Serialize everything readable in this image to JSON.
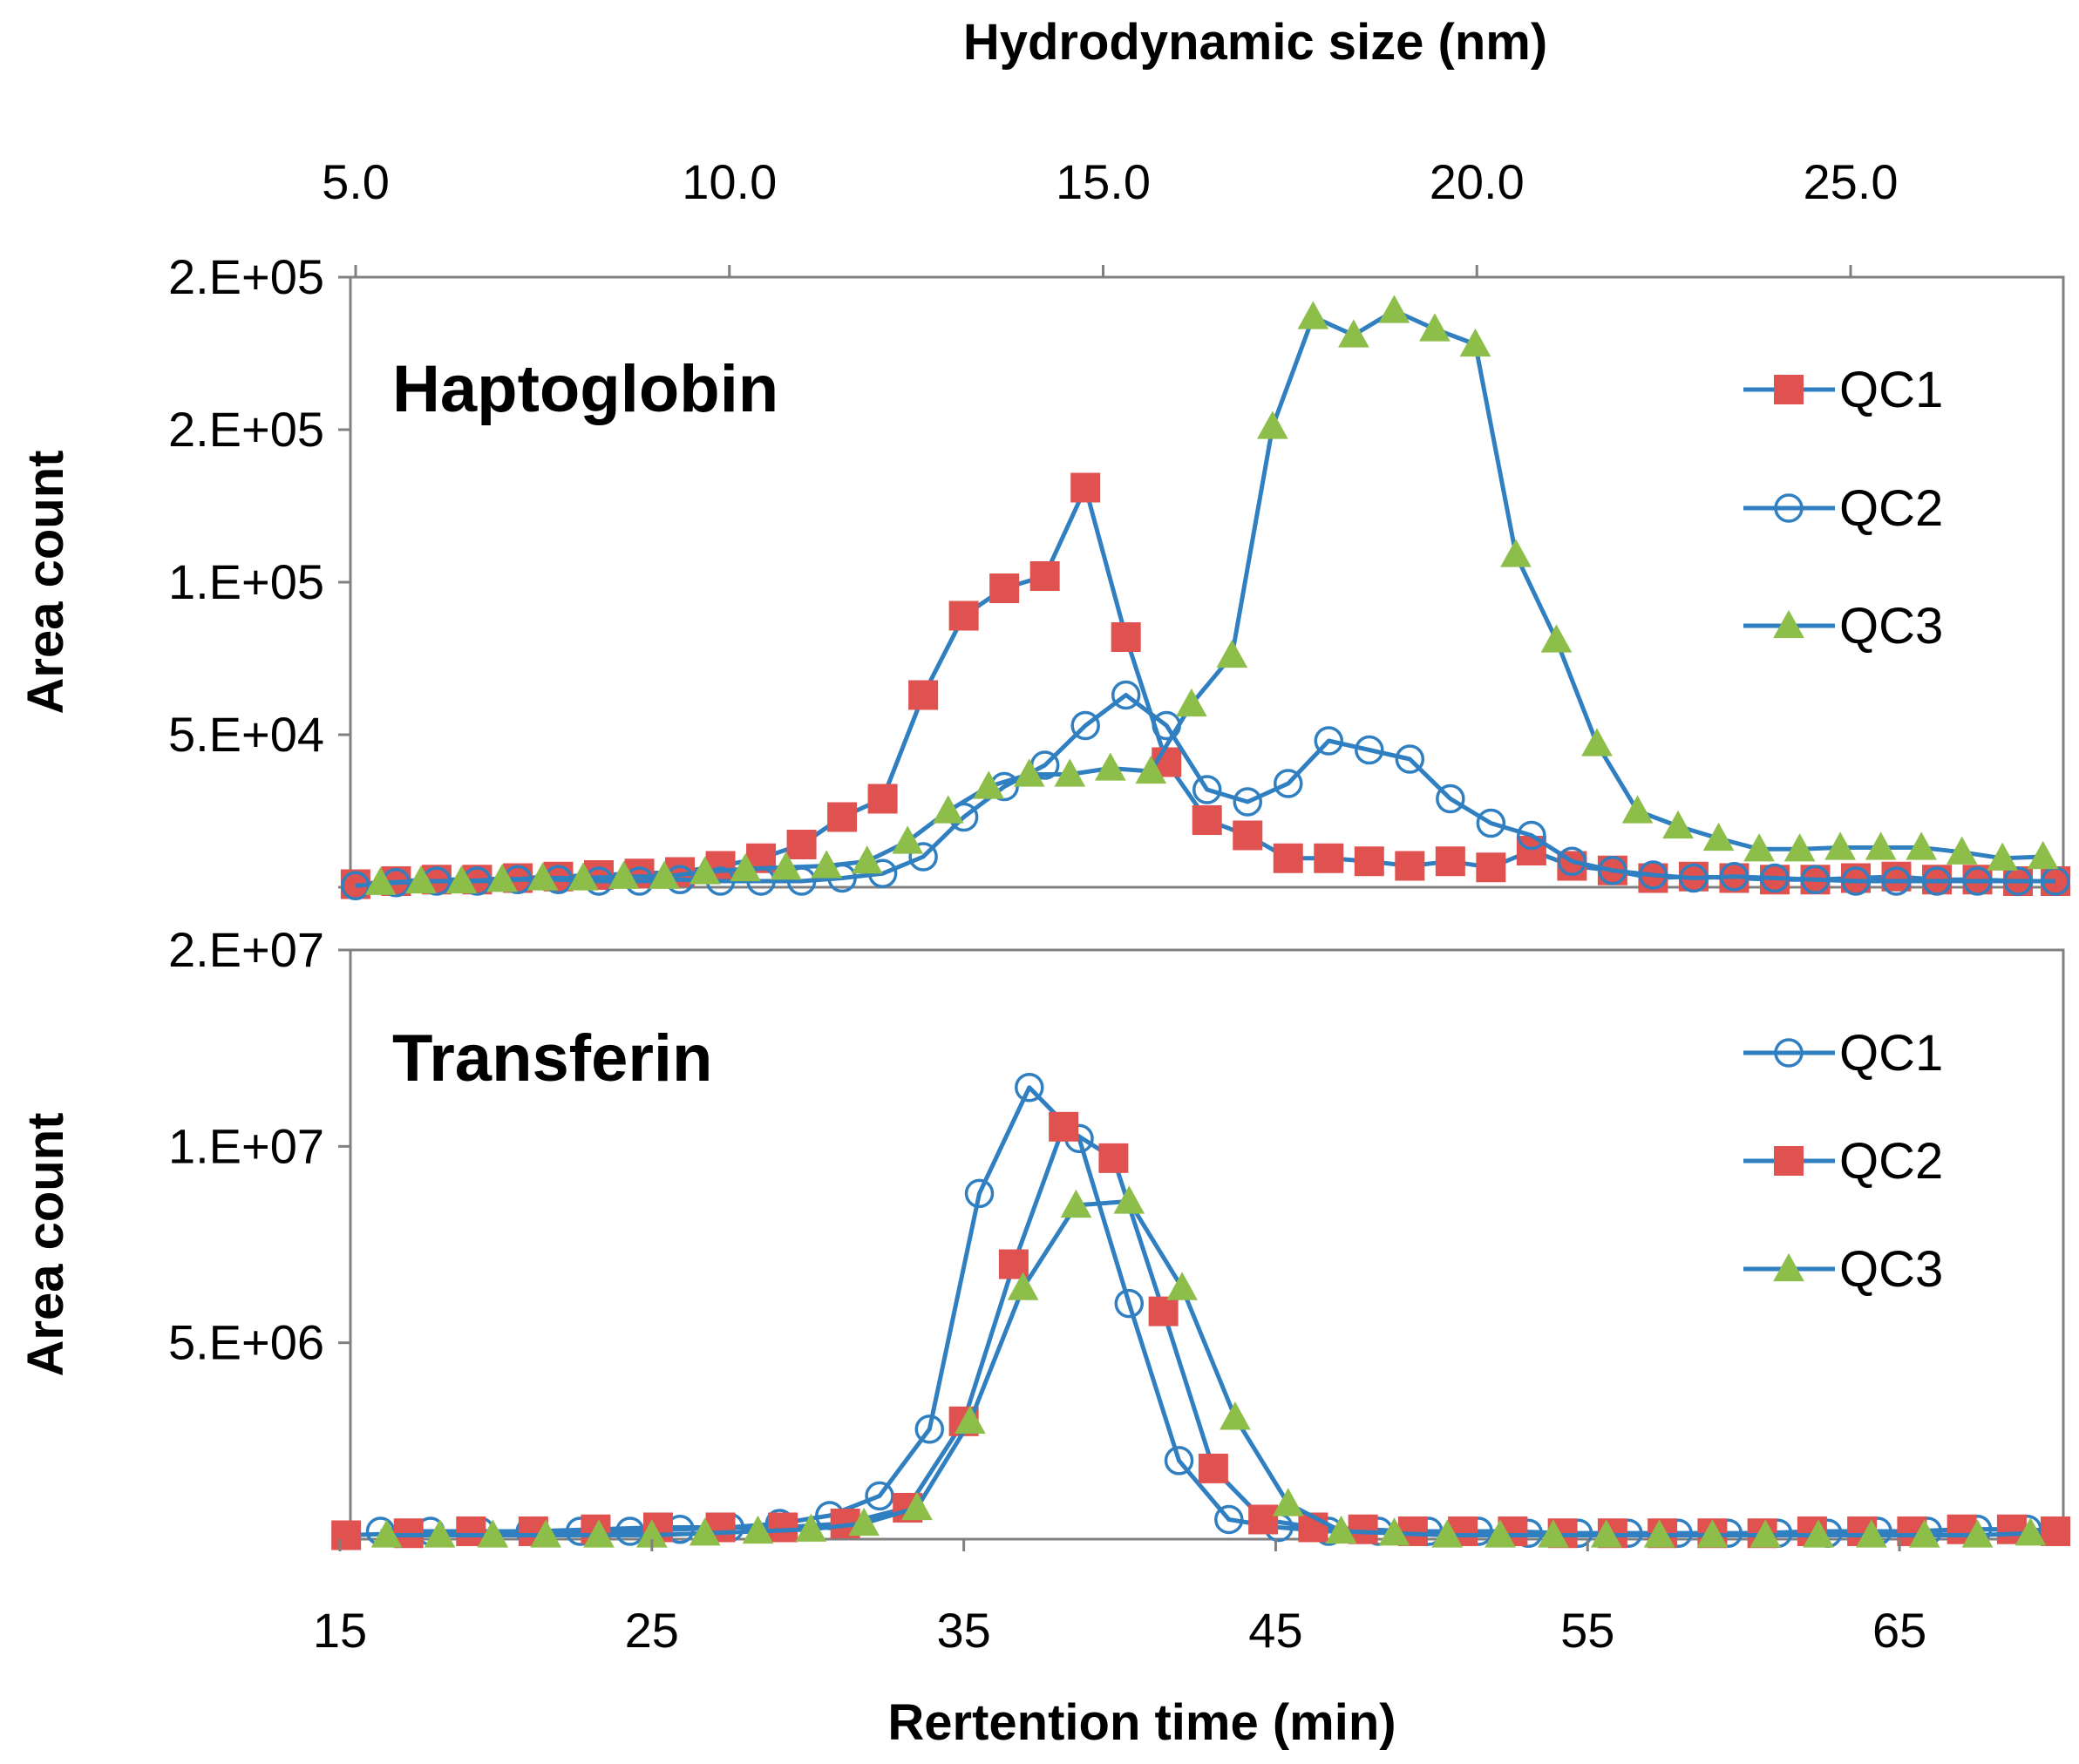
{
  "top_axis": {
    "title": "Hydrodynamic size (nm)",
    "ticks": [
      "5.0",
      "10.0",
      "15.0",
      "20.0",
      "25.0"
    ]
  },
  "x_axis": {
    "title": "Rertention time (min)",
    "ticks": [
      "15",
      "25",
      "35",
      "45",
      "55",
      "65"
    ]
  },
  "colors": {
    "line": "#2F7FC1",
    "square": "#E0524F",
    "triangle": "#8DBE4A"
  },
  "chart_data": [
    {
      "type": "line",
      "title": "Haptoglobin",
      "xlabel": "Rertention time (min)",
      "ylabel": "Area count",
      "xlim": [
        15,
        70
      ],
      "ylim": [
        0,
        200000
      ],
      "ytick_values": [
        0,
        50000,
        100000,
        150000,
        200000
      ],
      "ytick_labels": [
        "",
        "5.E+04",
        "1.E+05",
        "2.E+05",
        "2.E+05"
      ],
      "legend": [
        "QC1",
        "QC2",
        "QC3"
      ],
      "series": [
        {
          "name": "QC1",
          "marker": "square",
          "x": [
            15.5,
            16.8,
            18.1,
            19.4,
            20.7,
            22.0,
            23.3,
            24.6,
            25.9,
            27.2,
            28.5,
            29.8,
            31.1,
            32.4,
            33.7,
            35.0,
            36.3,
            37.6,
            38.9,
            40.2,
            41.5,
            42.8,
            44.1,
            45.4,
            46.7,
            48.0,
            49.3,
            50.6,
            51.9,
            53.2,
            54.5,
            55.8,
            57.1,
            58.4,
            59.7,
            61.0,
            62.3,
            63.6,
            64.9,
            66.2,
            67.5,
            68.8,
            70.0
          ],
          "y": [
            1000,
            2000,
            2500,
            2500,
            3000,
            3500,
            4000,
            4500,
            5000,
            7000,
            9500,
            14000,
            23000,
            29000,
            63000,
            89000,
            98000,
            102000,
            131000,
            82000,
            41000,
            22000,
            17000,
            9500,
            9500,
            8500,
            7000,
            8500,
            6500,
            12000,
            7000,
            5500,
            3000,
            3500,
            3000,
            2500,
            2500,
            3000,
            3500,
            2500,
            2500,
            2000,
            2000
          ]
        },
        {
          "name": "QC2",
          "marker": "circle",
          "x": [
            15.5,
            16.8,
            18.1,
            19.4,
            20.7,
            22.0,
            23.3,
            24.6,
            25.9,
            27.2,
            28.5,
            29.8,
            31.1,
            32.4,
            33.7,
            35.0,
            36.3,
            37.6,
            38.9,
            40.2,
            41.5,
            42.8,
            44.1,
            45.4,
            46.7,
            48.0,
            49.3,
            50.6,
            51.9,
            53.2,
            54.5,
            55.8,
            57.1,
            58.4,
            59.7,
            61.0,
            62.3,
            63.6,
            64.9,
            66.2,
            67.5,
            68.8,
            70.0
          ],
          "y": [
            500,
            1500,
            2000,
            2000,
            2500,
            2500,
            2000,
            2000,
            2500,
            2000,
            2000,
            2000,
            3000,
            4500,
            10000,
            23000,
            33000,
            40000,
            53000,
            63000,
            53000,
            32000,
            28000,
            34000,
            48000,
            45000,
            42000,
            29000,
            21000,
            17000,
            8500,
            5500,
            4000,
            3000,
            3500,
            3000,
            2500,
            2000,
            2000,
            2000,
            2000,
            2000,
            2000
          ]
        },
        {
          "name": "QC3",
          "marker": "triangle",
          "x": [
            16.3,
            17.6,
            18.9,
            20.2,
            21.5,
            22.8,
            24.1,
            25.4,
            26.7,
            28.0,
            29.3,
            30.6,
            31.9,
            33.2,
            34.5,
            35.8,
            37.1,
            38.4,
            39.7,
            41.0,
            42.3,
            43.6,
            44.9,
            46.2,
            47.5,
            48.8,
            50.1,
            51.4,
            52.7,
            54.0,
            55.3,
            56.6,
            57.9,
            59.2,
            60.5,
            61.8,
            63.1,
            64.4,
            65.7,
            67.0,
            68.3,
            69.6
          ],
          "y": [
            1500,
            2000,
            2000,
            2500,
            3000,
            3000,
            3500,
            3500,
            5000,
            6000,
            6500,
            7000,
            8500,
            15000,
            25000,
            33000,
            37000,
            37000,
            39000,
            38000,
            60000,
            76000,
            151000,
            187000,
            181000,
            189000,
            183000,
            178000,
            109000,
            81000,
            47000,
            25000,
            20000,
            16000,
            12500,
            12500,
            13000,
            13000,
            13000,
            11500,
            9500,
            10000
          ]
        }
      ]
    },
    {
      "type": "line",
      "title": "Transferin",
      "xlabel": "Rertention time (min)",
      "ylabel": "Area count",
      "xlim": [
        15,
        70
      ],
      "ylim": [
        0,
        15000000
      ],
      "ytick_values": [
        0,
        5000000,
        10000000,
        15000000
      ],
      "ytick_labels": [
        "",
        "5.E+06",
        "1.E+07",
        "2.E+07"
      ],
      "legend": [
        "QC1",
        "QC2",
        "QC3"
      ],
      "series": [
        {
          "name": "QC1",
          "marker": "circle",
          "x": [
            16.3,
            17.9,
            19.5,
            21.1,
            22.7,
            24.3,
            25.9,
            27.5,
            29.1,
            30.7,
            32.3,
            33.9,
            35.5,
            37.1,
            38.7,
            40.3,
            41.9,
            43.5,
            45.1,
            46.7,
            48.3,
            49.9,
            51.5,
            53.1,
            54.7,
            56.3,
            57.9,
            59.5,
            61.1,
            62.7,
            64.3,
            65.9,
            67.5,
            69.1,
            70.0
          ],
          "y": [
            200000,
            200000,
            200000,
            200000,
            200000,
            200000,
            250000,
            300000,
            400000,
            600000,
            1100000,
            2800000,
            8800000,
            11500000,
            10200000,
            6000000,
            2000000,
            500000,
            300000,
            200000,
            200000,
            200000,
            200000,
            150000,
            150000,
            150000,
            150000,
            150000,
            150000,
            150000,
            200000,
            200000,
            250000,
            250000,
            200000
          ]
        },
        {
          "name": "QC2",
          "marker": "square",
          "x": [
            15.2,
            17.2,
            19.2,
            21.2,
            23.2,
            25.2,
            27.2,
            29.2,
            31.2,
            33.2,
            35.0,
            36.6,
            38.2,
            39.8,
            41.4,
            43.0,
            44.6,
            46.2,
            47.8,
            49.4,
            51.0,
            52.6,
            54.2,
            55.8,
            57.4,
            59.0,
            60.6,
            62.2,
            63.8,
            65.4,
            67.0,
            68.6,
            70.0
          ],
          "y": [
            100000,
            150000,
            200000,
            200000,
            250000,
            300000,
            300000,
            300000,
            400000,
            800000,
            3000000,
            7000000,
            10500000,
            9700000,
            5800000,
            1800000,
            500000,
            300000,
            250000,
            200000,
            200000,
            200000,
            150000,
            150000,
            150000,
            150000,
            150000,
            200000,
            200000,
            200000,
            250000,
            250000,
            200000
          ]
        },
        {
          "name": "QC3",
          "marker": "triangle",
          "x": [
            16.5,
            18.2,
            19.9,
            21.6,
            23.3,
            25.0,
            26.7,
            28.4,
            30.1,
            31.8,
            33.5,
            35.2,
            36.9,
            38.6,
            40.3,
            42.0,
            43.7,
            45.4,
            47.1,
            48.8,
            50.5,
            52.2,
            53.9,
            55.6,
            57.3,
            59.0,
            60.7,
            62.4,
            64.1,
            65.8,
            67.5,
            69.2
          ],
          "y": [
            100000,
            100000,
            100000,
            100000,
            100000,
            100000,
            150000,
            200000,
            250000,
            400000,
            800000,
            3000000,
            6400000,
            8500000,
            8600000,
            6400000,
            3100000,
            900000,
            200000,
            150000,
            100000,
            100000,
            100000,
            100000,
            100000,
            100000,
            100000,
            100000,
            100000,
            100000,
            100000,
            150000
          ]
        }
      ]
    }
  ]
}
